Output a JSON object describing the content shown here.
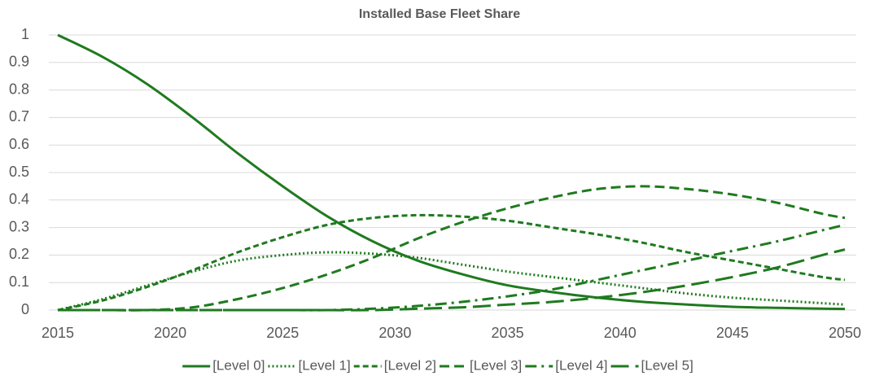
{
  "chart_data": {
    "type": "line",
    "title": "Installed Base Fleet Share",
    "x": [
      2015,
      2017,
      2019,
      2021,
      2023,
      2025,
      2027,
      2029,
      2031,
      2033,
      2035,
      2037,
      2039,
      2041,
      2043,
      2045,
      2047,
      2049,
      2050
    ],
    "xlim": [
      2015,
      2050
    ],
    "xticks": [
      2015,
      2020,
      2025,
      2030,
      2035,
      2040,
      2045,
      2050
    ],
    "ylim": [
      0,
      1
    ],
    "yticks": [
      0,
      0.1,
      0.2,
      0.3,
      0.4,
      0.5,
      0.6,
      0.7,
      0.8,
      0.9,
      1
    ],
    "grid": true,
    "legend": "bottom",
    "series": [
      {
        "name": "[Level 0]",
        "color": "#1f7a1f",
        "dash": "solid",
        "values": [
          1.0,
          0.92,
          0.82,
          0.7,
          0.57,
          0.45,
          0.34,
          0.25,
          0.18,
          0.13,
          0.09,
          0.065,
          0.045,
          0.03,
          0.02,
          0.012,
          0.008,
          0.005,
          0.004
        ]
      },
      {
        "name": "[Level 1]",
        "color": "#1f7a1f",
        "dash": "dot",
        "values": [
          0,
          0.04,
          0.09,
          0.14,
          0.18,
          0.2,
          0.21,
          0.205,
          0.19,
          0.165,
          0.14,
          0.12,
          0.1,
          0.08,
          0.06,
          0.045,
          0.035,
          0.025,
          0.02
        ]
      },
      {
        "name": "[Level 2]",
        "color": "#1f7a1f",
        "dash": "short-dash",
        "values": [
          0,
          0.035,
          0.085,
          0.145,
          0.21,
          0.265,
          0.31,
          0.335,
          0.345,
          0.34,
          0.325,
          0.3,
          0.275,
          0.245,
          0.21,
          0.18,
          0.15,
          0.12,
          0.11
        ]
      },
      {
        "name": "[Level 3]",
        "color": "#1f7a1f",
        "dash": "dash",
        "values": [
          0,
          0,
          0,
          0.01,
          0.04,
          0.08,
          0.13,
          0.19,
          0.26,
          0.32,
          0.37,
          0.41,
          0.44,
          0.45,
          0.44,
          0.42,
          0.39,
          0.35,
          0.335
        ]
      },
      {
        "name": "[Level 4]",
        "color": "#1f7a1f",
        "dash": "dash-dot",
        "values": [
          0,
          0,
          0,
          0,
          0,
          0,
          0,
          0.005,
          0.015,
          0.03,
          0.05,
          0.075,
          0.11,
          0.145,
          0.18,
          0.215,
          0.25,
          0.29,
          0.31
        ]
      },
      {
        "name": "[Level 5]",
        "color": "#1f7a1f",
        "dash": "long-dash",
        "values": [
          0,
          0,
          0,
          0,
          0,
          0,
          0,
          0,
          0.005,
          0.01,
          0.02,
          0.03,
          0.045,
          0.065,
          0.09,
          0.12,
          0.155,
          0.2,
          0.22
        ]
      }
    ]
  }
}
